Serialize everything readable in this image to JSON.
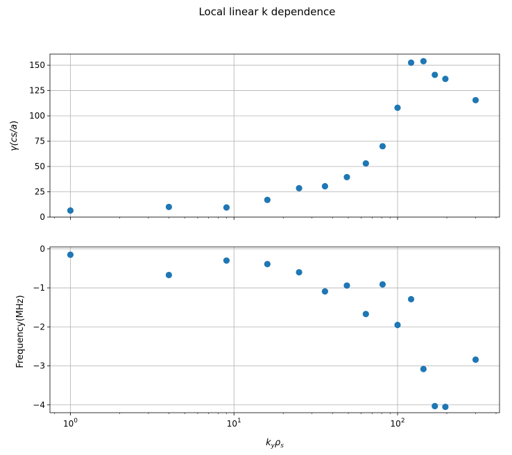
{
  "figure": {
    "title": "Local linear k dependence"
  },
  "chart_data": [
    {
      "type": "scatter",
      "xscale": "log",
      "xlim": [
        0.75,
        420
      ],
      "ylim": [
        0,
        161
      ],
      "ylabel": "γ(cs/a)",
      "ylabel_main": "γ(",
      "ylabel_italic": "cs/a",
      "ylabel_close": ")",
      "xlabel": "",
      "yticks": [
        0,
        25,
        50,
        75,
        100,
        125,
        150
      ],
      "grid": true,
      "marker_color": "#1f77b4",
      "x": [
        1,
        4,
        9,
        16,
        25,
        36,
        49,
        64,
        81,
        100,
        121,
        144,
        169,
        196,
        300
      ],
      "y": [
        6.5,
        10,
        9.5,
        17,
        28.5,
        30.5,
        39.5,
        53,
        70,
        108,
        152.5,
        154,
        140.5,
        136.5,
        115.5
      ]
    },
    {
      "type": "scatter",
      "xscale": "log",
      "xlim": [
        0.75,
        420
      ],
      "ylim": [
        -4.2,
        0.05
      ],
      "ylabel": "Frequency(MHz)",
      "xlabel": "kyρs",
      "xlabel_k": "k",
      "xlabel_k_sub": "y",
      "xlabel_rho": "ρ",
      "xlabel_rho_sub": "s",
      "yticks": [
        0,
        -1,
        -2,
        -3,
        -4
      ],
      "ytick_labels": [
        "0",
        "−1",
        "−2",
        "−3",
        "−4"
      ],
      "xtick_labels": [
        {
          "base": "10",
          "exp": "0",
          "value": 1
        },
        {
          "base": "10",
          "exp": "1",
          "value": 10
        },
        {
          "base": "10",
          "exp": "2",
          "value": 100
        }
      ],
      "grid": true,
      "marker_color": "#1f77b4",
      "x": [
        1,
        4,
        9,
        16,
        25,
        36,
        49,
        64,
        81,
        100,
        121,
        144,
        169,
        196,
        300
      ],
      "y": [
        -0.15,
        -0.67,
        -0.3,
        -0.39,
        -0.6,
        -1.09,
        -0.94,
        -1.67,
        -0.91,
        -1.95,
        -1.29,
        -3.08,
        -4.03,
        -4.05,
        -2.84
      ]
    }
  ]
}
